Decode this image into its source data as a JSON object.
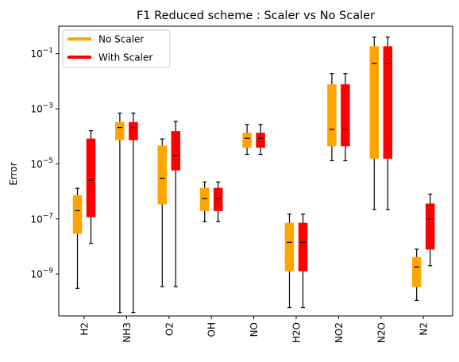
{
  "chart_data": {
    "type": "box",
    "title": "F1 Reduced scheme : Scaler vs No Scaler",
    "xlabel": "",
    "ylabel": "Error",
    "yscale": "log",
    "ylim": [
      3e-11,
      1.0
    ],
    "yticks": [
      {
        "value": 1e-09,
        "label": "10",
        "exp": "−9"
      },
      {
        "value": 1e-07,
        "label": "10",
        "exp": "−7"
      },
      {
        "value": 1e-05,
        "label": "10",
        "exp": "−5"
      },
      {
        "value": 0.001,
        "label": "10",
        "exp": "−3"
      },
      {
        "value": 0.1,
        "label": "10",
        "exp": "−1"
      }
    ],
    "categories": [
      "H2",
      "NH3",
      "O2",
      "OH",
      "NO",
      "H2O",
      "NO2",
      "N2O",
      "N2"
    ],
    "legend": {
      "position": "top-left"
    },
    "series": [
      {
        "name": "No Scaler",
        "color": "#FFA500",
        "boxes": [
          {
            "whislo": 3e-10,
            "q1": 3e-08,
            "med": 2e-07,
            "q3": 7e-07,
            "whishi": 1.3e-06
          },
          {
            "whislo": 4e-11,
            "q1": 7.5e-05,
            "med": 0.00021,
            "q3": 0.00032,
            "whishi": 0.0007
          },
          {
            "whislo": 3.5e-10,
            "q1": 3.5e-07,
            "med": 3e-06,
            "q3": 4.5e-05,
            "whishi": 8e-05
          },
          {
            "whislo": 8e-08,
            "q1": 2e-07,
            "med": 5.5e-07,
            "q3": 1.3e-06,
            "whishi": 2.2e-06
          },
          {
            "whislo": 2.2e-05,
            "q1": 4e-05,
            "med": 8.5e-05,
            "q3": 0.00013,
            "whishi": 0.00027
          },
          {
            "whislo": 6e-11,
            "q1": 1.3e-09,
            "med": 1.4e-08,
            "q3": 7e-08,
            "whishi": 1.5e-07
          },
          {
            "whislo": 1.3e-05,
            "q1": 4.5e-05,
            "med": 0.00018,
            "q3": 0.0075,
            "whishi": 0.019
          },
          {
            "whislo": 2.2e-07,
            "q1": 1.6e-05,
            "med": 0.045,
            "q3": 0.18,
            "whishi": 0.4
          },
          {
            "whislo": 1.1e-10,
            "q1": 3.5e-10,
            "med": 1.8e-09,
            "q3": 4e-09,
            "whishi": 8e-09
          }
        ]
      },
      {
        "name": "With Scaler",
        "color": "#FF0000",
        "boxes": [
          {
            "whislo": 1.3e-08,
            "q1": 1.2e-07,
            "med": 2.5e-06,
            "q3": 8e-05,
            "whishi": 0.00016
          },
          {
            "whislo": 4e-11,
            "q1": 7.5e-05,
            "med": 0.00021,
            "q3": 0.00032,
            "whishi": 0.0007
          },
          {
            "whislo": 3.5e-10,
            "q1": 6e-06,
            "med": 2e-05,
            "q3": 0.00015,
            "whishi": 0.00035
          },
          {
            "whislo": 8e-08,
            "q1": 2e-07,
            "med": 5.5e-07,
            "q3": 1.3e-06,
            "whishi": 2.2e-06
          },
          {
            "whislo": 2.2e-05,
            "q1": 4e-05,
            "med": 8.5e-05,
            "q3": 0.00013,
            "whishi": 0.00027
          },
          {
            "whislo": 6e-11,
            "q1": 1.3e-09,
            "med": 1.4e-08,
            "q3": 7e-08,
            "whishi": 1.5e-07
          },
          {
            "whislo": 1.3e-05,
            "q1": 4.5e-05,
            "med": 0.00018,
            "q3": 0.0075,
            "whishi": 0.019
          },
          {
            "whislo": 2.2e-07,
            "q1": 1.6e-05,
            "med": 0.045,
            "q3": 0.18,
            "whishi": 0.4
          },
          {
            "whislo": 2e-09,
            "q1": 8e-09,
            "med": 1e-07,
            "q3": 3.5e-07,
            "whishi": 8e-07
          }
        ]
      }
    ]
  }
}
